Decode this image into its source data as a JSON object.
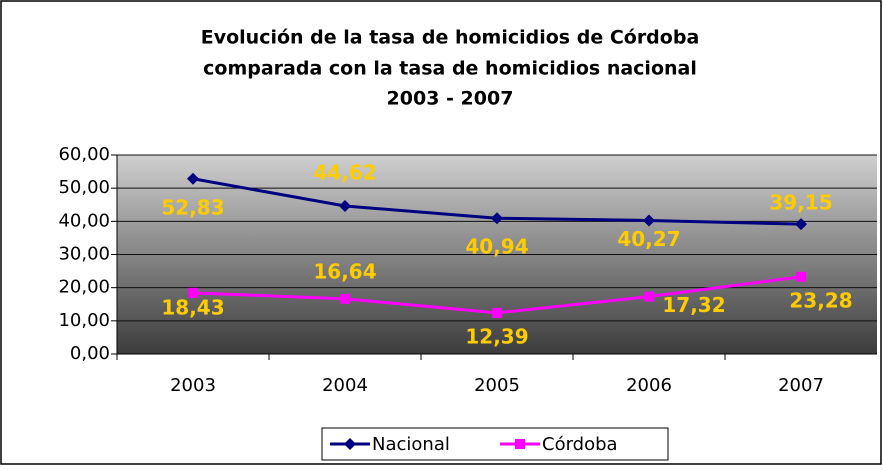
{
  "chart_data": {
    "type": "line",
    "title": [
      "Evolución de la tasa de homicidios de Córdoba",
      "comparada con la tasa de homicidios nacional",
      "2003 - 2007"
    ],
    "categories": [
      "2003",
      "2004",
      "2005",
      "2006",
      "2007"
    ],
    "series": [
      {
        "name": "Nacional",
        "color": "#000080",
        "marker": "diamond",
        "values": [
          52.83,
          44.62,
          40.94,
          40.27,
          39.15
        ],
        "value_labels": [
          "52,83",
          "44,62",
          "40,94",
          "40,27",
          "39,15"
        ]
      },
      {
        "name": "Córdoba",
        "color": "#ff00ff",
        "marker": "square",
        "values": [
          18.43,
          16.64,
          12.39,
          17.32,
          23.28
        ],
        "value_labels": [
          "18,43",
          "16,64",
          "12,39",
          "17,32",
          "23,28"
        ]
      }
    ],
    "ylim": [
      0,
      60
    ],
    "yticks": [
      {
        "value": 0,
        "label": "0,00"
      },
      {
        "value": 10,
        "label": "10,00"
      },
      {
        "value": 20,
        "label": "20,00"
      },
      {
        "value": 30,
        "label": "30,00"
      },
      {
        "value": 40,
        "label": "40,00"
      },
      {
        "value": 50,
        "label": "50,00"
      },
      {
        "value": 60,
        "label": "60,00"
      }
    ],
    "grid": true,
    "legend": "bottom"
  }
}
